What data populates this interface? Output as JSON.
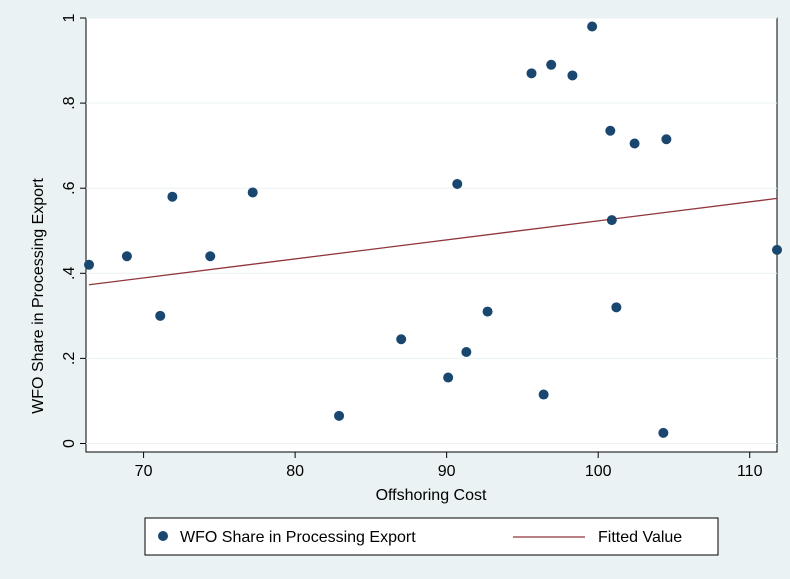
{
  "chart_data": {
    "type": "scatter",
    "title": "",
    "xlabel": "Offshoring Cost",
    "ylabel": "WFO Share in Processing Export",
    "xlim": [
      66.2,
      111.8
    ],
    "ylim": [
      -0.02,
      1.0
    ],
    "x_ticks": [
      70,
      80,
      90,
      100,
      110
    ],
    "x_tick_labels": [
      "70",
      "80",
      "90",
      "100",
      "110"
    ],
    "y_ticks": [
      0,
      0.2,
      0.4,
      0.6,
      0.8,
      1
    ],
    "y_tick_labels": [
      "0",
      ".2",
      ".4",
      ".6",
      ".8",
      "1"
    ],
    "grid": "horizontal",
    "legend_position": "bottom",
    "series": [
      {
        "name": "WFO Share in Processing Export",
        "kind": "scatter",
        "color": "#1a476f",
        "points": [
          {
            "x": 66.4,
            "y": 0.42
          },
          {
            "x": 68.9,
            "y": 0.44
          },
          {
            "x": 71.1,
            "y": 0.3
          },
          {
            "x": 71.9,
            "y": 0.58
          },
          {
            "x": 74.4,
            "y": 0.44
          },
          {
            "x": 77.2,
            "y": 0.59
          },
          {
            "x": 82.9,
            "y": 0.065
          },
          {
            "x": 87.0,
            "y": 0.245
          },
          {
            "x": 90.1,
            "y": 0.155
          },
          {
            "x": 90.7,
            "y": 0.61
          },
          {
            "x": 91.3,
            "y": 0.215
          },
          {
            "x": 92.7,
            "y": 0.31
          },
          {
            "x": 95.6,
            "y": 0.87
          },
          {
            "x": 96.4,
            "y": 0.115
          },
          {
            "x": 96.9,
            "y": 0.89
          },
          {
            "x": 98.3,
            "y": 0.865
          },
          {
            "x": 99.6,
            "y": 0.98
          },
          {
            "x": 100.8,
            "y": 0.735
          },
          {
            "x": 100.9,
            "y": 0.525
          },
          {
            "x": 101.2,
            "y": 0.32
          },
          {
            "x": 102.4,
            "y": 0.705
          },
          {
            "x": 104.3,
            "y": 0.025
          },
          {
            "x": 104.5,
            "y": 0.715
          },
          {
            "x": 111.8,
            "y": 0.455
          }
        ]
      },
      {
        "name": "Fitted Value",
        "kind": "line",
        "color": "#90353b",
        "points": [
          {
            "x": 66.4,
            "y": 0.373
          },
          {
            "x": 111.8,
            "y": 0.576
          }
        ]
      }
    ]
  }
}
